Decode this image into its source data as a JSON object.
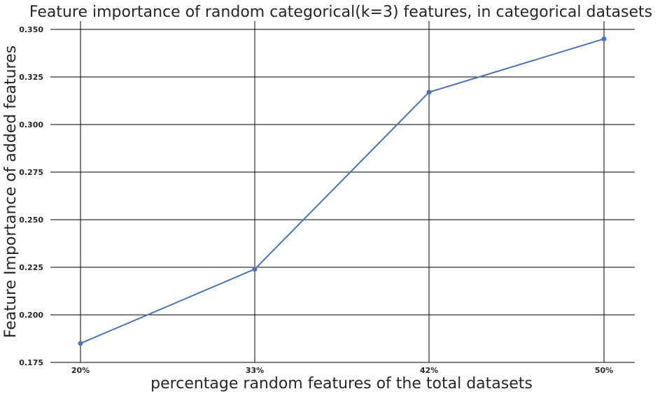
{
  "chart_data": {
    "type": "line",
    "title": "Feature importance of random categorical(k=3) features, in categorical datasets",
    "xlabel": "percentage random features of the total datasets",
    "ylabel": "Feature Importance of added features",
    "categories": [
      "20%",
      "33%",
      "42%",
      "50%"
    ],
    "series": [
      {
        "values": [
          0.185,
          0.224,
          0.317,
          0.345
        ]
      }
    ],
    "ylim": [
      0.175,
      0.35
    ],
    "yticks": [
      "0.175",
      "0.200",
      "0.225",
      "0.250",
      "0.275",
      "0.300",
      "0.325",
      "0.350"
    ],
    "grid": true,
    "legend": "none",
    "colors": {
      "line": "#4c72b0",
      "grid": "#000000",
      "text": "#262626",
      "background": "#ffffff"
    }
  }
}
